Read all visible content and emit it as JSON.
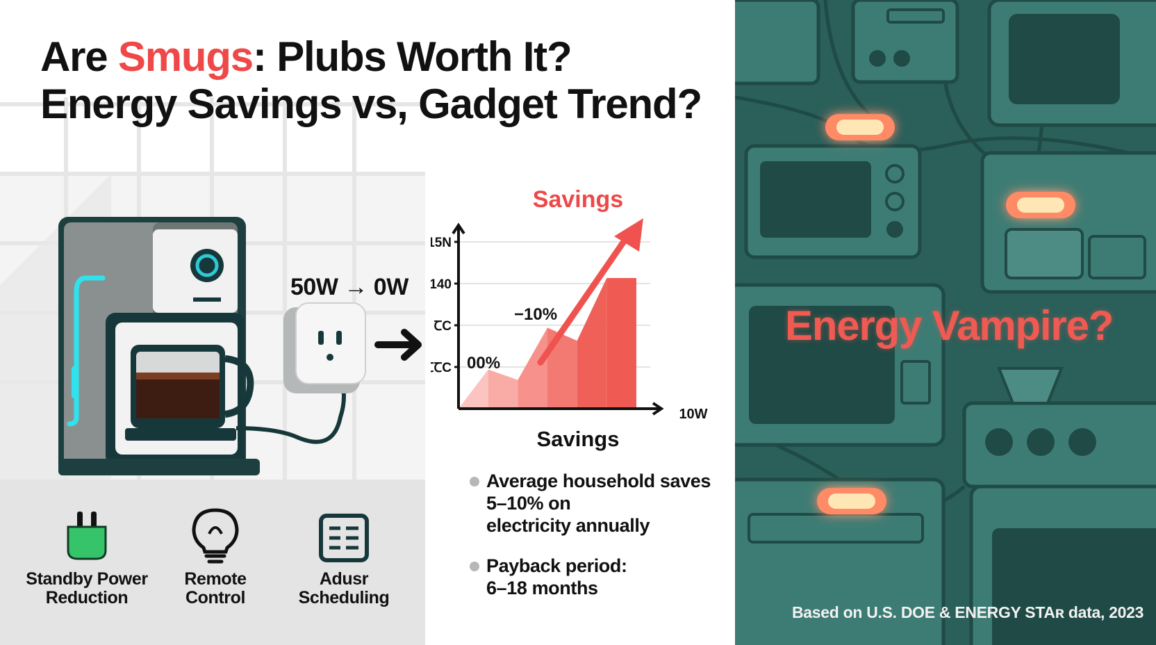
{
  "title": {
    "line1_prefix": "Are ",
    "line1_accent": "Smugs",
    "line1_suffix": ": Plubs Worth It?",
    "line2": "Energy Savings vs, Gadget Trend?"
  },
  "appliance_graphic": {
    "power_label": "50W → 0W"
  },
  "chart_data": {
    "type": "area",
    "title": "Savings",
    "xlabel": "Savings",
    "ylabel": "",
    "y_tick_labels": [
      "15N",
      "140",
      "ꞆC",
      "ꞆꞆC"
    ],
    "x_end_label": "10W",
    "annotations": [
      "00%",
      "−10%"
    ],
    "values": [
      0,
      30,
      22,
      62,
      52,
      100,
      100
    ],
    "trend": "rising",
    "accent_color": "#f0534f"
  },
  "bullets": [
    {
      "text": [
        "Average household saves",
        "5–10% on",
        "electricity annually"
      ]
    },
    {
      "text": [
        "Payback period:",
        "6–18 months"
      ]
    }
  ],
  "features": [
    {
      "icon": "plug-icon",
      "label": [
        "Standby Power",
        "Reduction"
      ]
    },
    {
      "icon": "bulb-icon",
      "label": [
        "Remote",
        "Control"
      ]
    },
    {
      "icon": "calendar-icon",
      "label": [
        "Adusr",
        "Scheduling"
      ]
    }
  ],
  "right_panel": {
    "headline": "Energy Vampire?",
    "source": "Based on U.S. DOE & ENERGY STAʀ data, 2023",
    "colors": {
      "background": "#2c6560",
      "glow": "#ff8a66",
      "headline": "#ef5a52"
    }
  }
}
